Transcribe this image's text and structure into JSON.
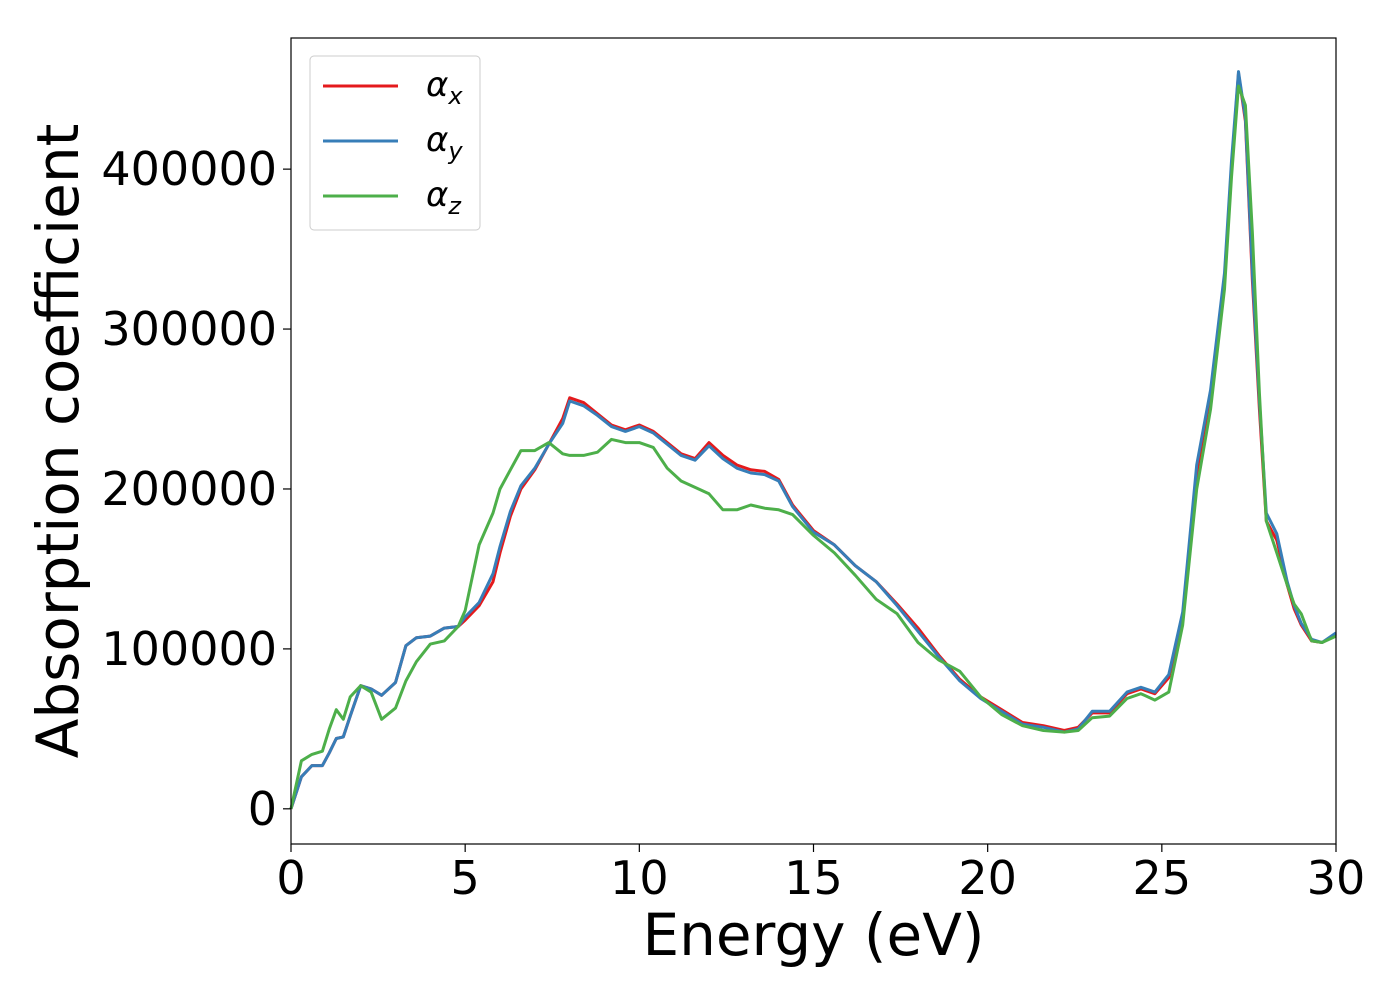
{
  "chart_data": {
    "type": "line",
    "xlabel": "Energy (eV)",
    "ylabel": "Absorption coefficient",
    "xlim": [
      0,
      30
    ],
    "ylim": [
      -22000,
      482000
    ],
    "xticks": [
      0,
      5,
      10,
      15,
      20,
      25,
      30
    ],
    "yticks": [
      0,
      100000,
      200000,
      300000,
      400000
    ],
    "grid": false,
    "legend_position": "top-left",
    "series": [
      {
        "name": "αx",
        "base": "α",
        "sub": "x",
        "color": "#e41a1c",
        "x": [
          0,
          0.3,
          0.6,
          0.9,
          1.1,
          1.3,
          1.5,
          1.7,
          2.0,
          2.3,
          2.6,
          3.0,
          3.3,
          3.6,
          4.0,
          4.4,
          4.8,
          5.0,
          5.4,
          5.8,
          6.0,
          6.3,
          6.6,
          7.0,
          7.4,
          7.8,
          8.0,
          8.4,
          8.8,
          9.2,
          9.6,
          10.0,
          10.4,
          10.8,
          11.2,
          11.6,
          12.0,
          12.4,
          12.8,
          13.2,
          13.6,
          14.0,
          14.4,
          15.0,
          15.6,
          16.2,
          16.8,
          17.4,
          18.0,
          18.6,
          19.2,
          19.8,
          20.4,
          21.0,
          21.6,
          22.2,
          22.6,
          23.0,
          23.5,
          24.0,
          24.4,
          24.8,
          25.2,
          25.6,
          26.0,
          26.4,
          26.8,
          27.0,
          27.2,
          27.4,
          27.6,
          27.8,
          28.0,
          28.3,
          28.6,
          28.8,
          29.0,
          29.3,
          29.6,
          30.0
        ],
        "values": [
          0,
          20000,
          27000,
          27000,
          35000,
          44000,
          45000,
          58000,
          77000,
          75000,
          71000,
          79000,
          102000,
          107000,
          108000,
          113000,
          114000,
          118000,
          127000,
          142000,
          160000,
          183000,
          200000,
          212000,
          228000,
          244000,
          257000,
          254000,
          247000,
          240000,
          237000,
          240000,
          236000,
          229000,
          222000,
          219000,
          229000,
          221000,
          215000,
          212000,
          211000,
          206000,
          190000,
          174000,
          165000,
          152000,
          142000,
          128000,
          113000,
          96000,
          81000,
          70000,
          62000,
          54000,
          52000,
          49000,
          51000,
          60000,
          60000,
          72000,
          75000,
          72000,
          82000,
          120000,
          210000,
          260000,
          330000,
          400000,
          460000,
          430000,
          330000,
          250000,
          180000,
          168000,
          140000,
          125000,
          115000,
          105000,
          104000,
          109000
        ]
      },
      {
        "name": "αy",
        "base": "α",
        "sub": "y",
        "color": "#377eb8",
        "x": [
          0,
          0.3,
          0.6,
          0.9,
          1.1,
          1.3,
          1.5,
          1.7,
          2.0,
          2.3,
          2.6,
          3.0,
          3.3,
          3.6,
          4.0,
          4.4,
          4.8,
          5.0,
          5.4,
          5.8,
          6.0,
          6.3,
          6.6,
          7.0,
          7.4,
          7.8,
          8.0,
          8.4,
          8.8,
          9.2,
          9.6,
          10.0,
          10.4,
          10.8,
          11.2,
          11.6,
          12.0,
          12.4,
          12.8,
          13.2,
          13.6,
          14.0,
          14.4,
          15.0,
          15.6,
          16.2,
          16.8,
          17.4,
          18.0,
          18.6,
          19.2,
          19.8,
          20.4,
          21.0,
          21.6,
          22.2,
          22.6,
          23.0,
          23.5,
          24.0,
          24.4,
          24.8,
          25.2,
          25.6,
          26.0,
          26.4,
          26.8,
          27.0,
          27.2,
          27.4,
          27.6,
          27.8,
          28.0,
          28.3,
          28.6,
          28.8,
          29.0,
          29.3,
          29.6,
          30.0
        ],
        "values": [
          0,
          20000,
          27000,
          27000,
          35000,
          44000,
          45000,
          58000,
          77000,
          75000,
          71000,
          79000,
          102000,
          107000,
          108000,
          113000,
          114000,
          120000,
          129000,
          147000,
          164000,
          186000,
          202000,
          213000,
          228000,
          241000,
          255000,
          252000,
          246000,
          239000,
          236000,
          239000,
          235000,
          228000,
          221000,
          218000,
          227000,
          219000,
          213000,
          210000,
          209000,
          205000,
          189000,
          173000,
          165000,
          152000,
          142000,
          127000,
          111000,
          95000,
          80000,
          69000,
          61000,
          53000,
          51000,
          48000,
          50000,
          61000,
          61000,
          73000,
          76000,
          73000,
          84000,
          123000,
          215000,
          262000,
          335000,
          405000,
          461000,
          432000,
          335000,
          255000,
          185000,
          172000,
          142000,
          127000,
          116000,
          106000,
          104000,
          110000
        ]
      },
      {
        "name": "αz",
        "base": "α",
        "sub": "z",
        "color": "#4daf4a",
        "x": [
          0,
          0.3,
          0.6,
          0.9,
          1.1,
          1.3,
          1.5,
          1.7,
          2.0,
          2.3,
          2.6,
          3.0,
          3.3,
          3.6,
          4.0,
          4.4,
          4.8,
          5.0,
          5.4,
          5.8,
          6.0,
          6.3,
          6.6,
          7.0,
          7.4,
          7.8,
          8.0,
          8.4,
          8.8,
          9.2,
          9.6,
          10.0,
          10.4,
          10.8,
          11.2,
          11.6,
          12.0,
          12.4,
          12.8,
          13.2,
          13.6,
          14.0,
          14.4,
          15.0,
          15.6,
          16.2,
          16.8,
          17.4,
          18.0,
          18.6,
          19.2,
          19.8,
          20.4,
          21.0,
          21.6,
          22.2,
          22.6,
          23.0,
          23.5,
          24.0,
          24.4,
          24.8,
          25.2,
          25.6,
          26.0,
          26.4,
          26.8,
          27.0,
          27.2,
          27.4,
          27.6,
          27.8,
          28.0,
          28.3,
          28.6,
          28.8,
          29.0,
          29.3,
          29.6,
          30.0
        ],
        "values": [
          0,
          30000,
          34000,
          36000,
          50000,
          62000,
          56000,
          70000,
          77000,
          73000,
          56000,
          63000,
          80000,
          92000,
          103000,
          105000,
          114000,
          124000,
          165000,
          185000,
          200000,
          212000,
          224000,
          224000,
          229000,
          222000,
          221000,
          221000,
          223000,
          231000,
          229000,
          229000,
          226000,
          213000,
          205000,
          201000,
          197000,
          187000,
          187000,
          190000,
          188000,
          187000,
          184000,
          171000,
          160000,
          146000,
          131000,
          122000,
          104000,
          93000,
          86000,
          70000,
          59000,
          52000,
          49000,
          48000,
          49000,
          57000,
          58000,
          69000,
          72000,
          68000,
          73000,
          115000,
          200000,
          250000,
          325000,
          395000,
          452000,
          440000,
          360000,
          260000,
          180000,
          160000,
          140000,
          128000,
          122000,
          105000,
          104000,
          108000
        ]
      }
    ]
  }
}
